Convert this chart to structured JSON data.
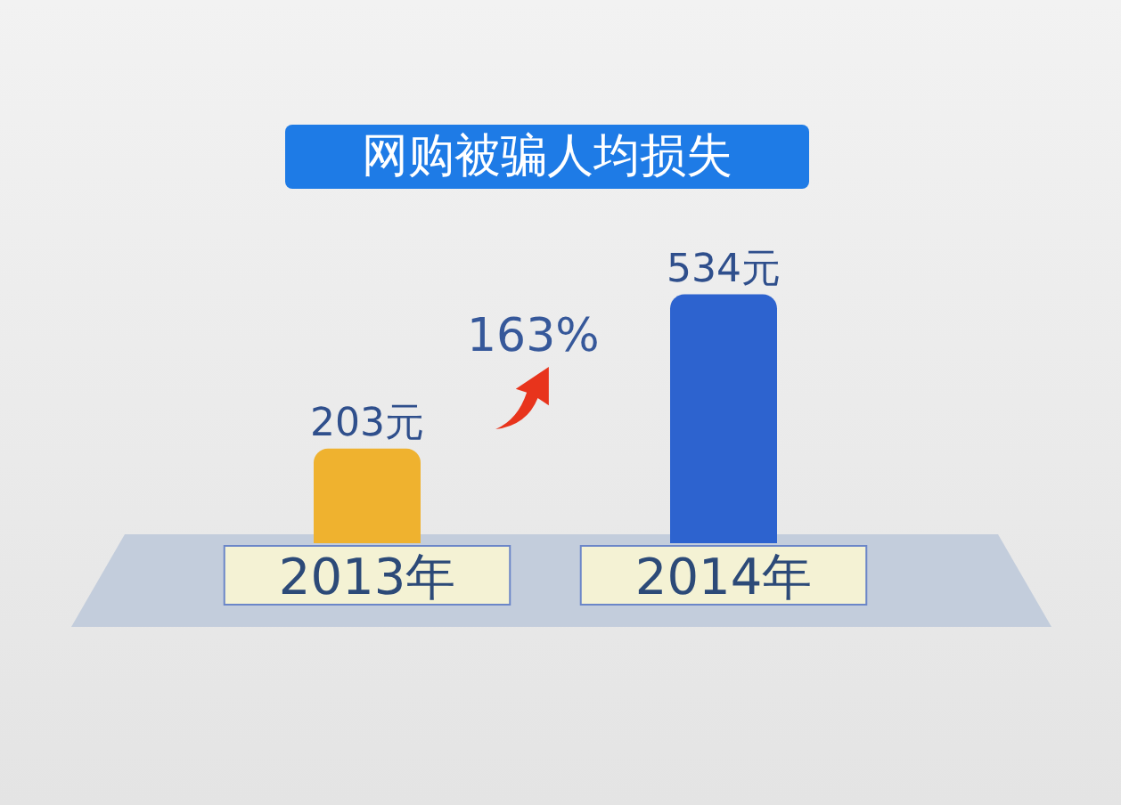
{
  "chart_data": {
    "type": "bar",
    "title": "网购被骗人均损失",
    "categories": [
      "2013年",
      "2014年"
    ],
    "values": [
      203,
      534
    ],
    "colors": [
      "#efb22f",
      "#2d63cf"
    ],
    "value_labels": [
      "203元",
      "534元"
    ],
    "annotations": [
      "163%"
    ]
  }
}
